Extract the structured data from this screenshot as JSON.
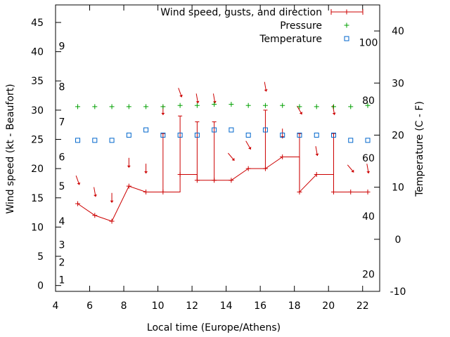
{
  "chart_data": {
    "type": "line",
    "xlabel": "Local time (Europe/Athens)",
    "ylabel_left": "Wind speed (kt - Beaufort)",
    "ylabel_right": "Temperature (C - F)",
    "xlim": [
      4,
      23
    ],
    "xticks": [
      4,
      6,
      8,
      10,
      12,
      14,
      16,
      18,
      20,
      22
    ],
    "ylim_left": [
      -1,
      48
    ],
    "yticks_left": [
      0,
      5,
      10,
      15,
      20,
      25,
      30,
      35,
      40,
      45
    ],
    "ylim_right": [
      -10,
      45
    ],
    "yticks_right": [
      -10,
      0,
      10,
      20,
      30,
      40
    ],
    "beaufort_labels": [
      {
        "label": "1",
        "value": 1
      },
      {
        "label": "2",
        "value": 4
      },
      {
        "label": "3",
        "value": 7
      },
      {
        "label": "4",
        "value": 11
      },
      {
        "label": "5",
        "value": 17
      },
      {
        "label": "6",
        "value": 22
      },
      {
        "label": "7",
        "value": 28
      },
      {
        "label": "8",
        "value": 34
      },
      {
        "label": "9",
        "value": 41
      }
    ],
    "fahrenheit_labels": [
      {
        "label": "20",
        "value": -6.7
      },
      {
        "label": "40",
        "value": 4.4
      },
      {
        "label": "60",
        "value": 15.6
      },
      {
        "label": "80",
        "value": 26.7
      },
      {
        "label": "100",
        "value": 37.8
      }
    ],
    "legend_position": "top-right",
    "series": [
      {
        "name": "Wind speed, gusts, and direction",
        "color": "#cc0000",
        "x": [
          5.3,
          6.3,
          7.3,
          8.3,
          9.3,
          10.3,
          11.3,
          12.3,
          13.3,
          14.3,
          15.3,
          16.3,
          17.3,
          18.3,
          19.3,
          20.3,
          21.3,
          22.3
        ],
        "speed": [
          14,
          12,
          11,
          17,
          16,
          16,
          19,
          18,
          18,
          18,
          20,
          20,
          22,
          16,
          19,
          16,
          16,
          16
        ],
        "gust": [
          14,
          12,
          11,
          17,
          16,
          26,
          29,
          28,
          28,
          18,
          20,
          30,
          22,
          26,
          19,
          26,
          16,
          16
        ],
        "direction_marker_y": [
          18,
          16,
          15,
          21,
          20,
          30,
          33,
          32,
          32,
          22,
          24,
          34,
          26,
          30,
          23,
          30,
          20,
          20
        ],
        "direction_deg": [
          340,
          350,
          360,
          360,
          360,
          360,
          340,
          350,
          350,
          320,
          330,
          350,
          360,
          330,
          350,
          350,
          320,
          350
        ]
      },
      {
        "name": "Pressure",
        "color": "#00a000",
        "x": [
          5.3,
          6.3,
          7.3,
          8.3,
          9.3,
          10.3,
          11.3,
          12.3,
          13.3,
          14.3,
          15.3,
          16.3,
          17.3,
          18.3,
          19.3,
          20.3,
          21.3,
          22.3
        ],
        "values": [
          30.6,
          30.6,
          30.6,
          30.6,
          30.6,
          30.6,
          30.8,
          30.8,
          31.0,
          31.0,
          30.8,
          30.8,
          30.8,
          30.6,
          30.6,
          30.6,
          30.6,
          30.8
        ]
      },
      {
        "name": "Temperature",
        "color": "#0066cc",
        "x": [
          5.3,
          6.3,
          7.3,
          8.3,
          9.3,
          10.3,
          11.3,
          12.3,
          13.3,
          14.3,
          15.3,
          16.3,
          17.3,
          18.3,
          19.3,
          20.3,
          21.3,
          22.3
        ],
        "values": [
          19,
          19,
          19,
          20,
          21,
          20,
          20,
          20,
          21,
          21,
          20,
          21,
          20,
          20,
          20,
          20,
          19,
          19
        ]
      }
    ]
  }
}
